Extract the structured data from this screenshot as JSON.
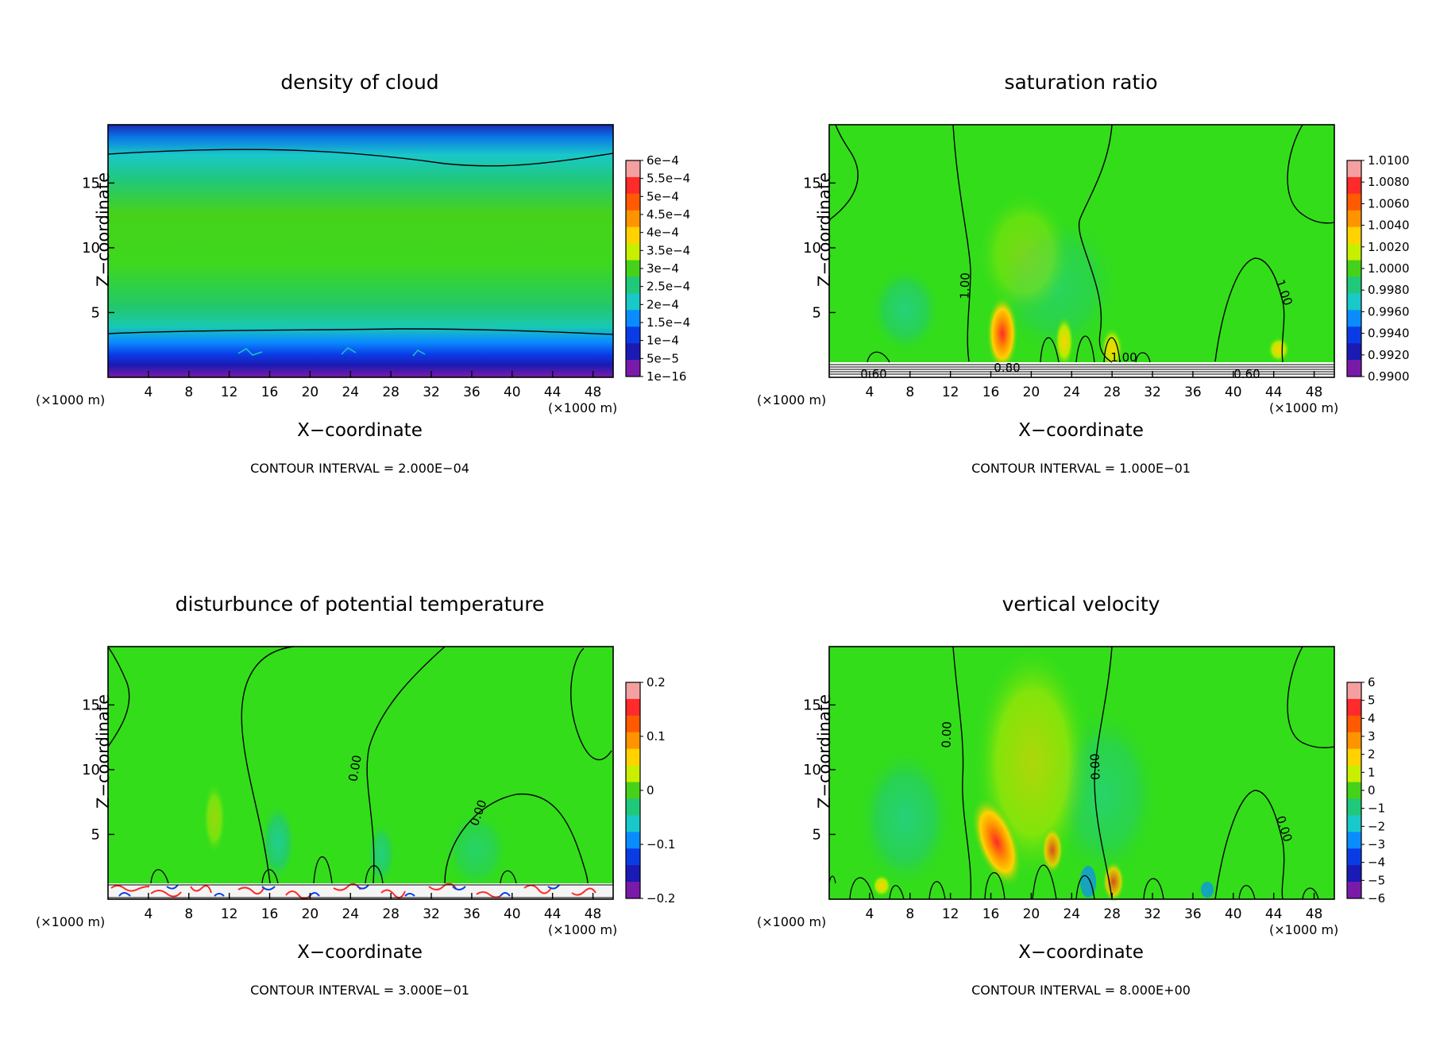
{
  "chart_data": [
    {
      "type": "heatmap",
      "title": "density of cloud",
      "xlabel": "X−coordinate",
      "ylabel": "Z−coordinate",
      "x_unit_left": "(×1000 m)",
      "x_unit_right": "(×1000 m)",
      "x_ticks": [
        "4",
        "8",
        "12",
        "16",
        "20",
        "24",
        "28",
        "32",
        "36",
        "40",
        "44",
        "48"
      ],
      "y_ticks": [
        "5",
        "10",
        "15"
      ],
      "xlim": [
        0,
        50
      ],
      "ylim": [
        0,
        19.5
      ],
      "contour_interval": "CONTOUR INTERVAL = 2.000E−04",
      "colorbar_labels": [
        "6e−4",
        "5.5e−4",
        "5e−4",
        "4.5e−4",
        "4e−4",
        "3.5e−4",
        "3e−4",
        "2.5e−4",
        "2e−4",
        "1.5e−4",
        "1e−4",
        "5e−5",
        "1e−16"
      ],
      "contour_labels": []
    },
    {
      "type": "heatmap",
      "title": "saturation ratio",
      "xlabel": "X−coordinate",
      "ylabel": "Z−coordinate",
      "x_unit_left": "(×1000 m)",
      "x_unit_right": "(×1000 m)",
      "x_ticks": [
        "4",
        "8",
        "12",
        "16",
        "20",
        "24",
        "28",
        "32",
        "36",
        "40",
        "44",
        "48"
      ],
      "y_ticks": [
        "5",
        "10",
        "15"
      ],
      "xlim": [
        0,
        50
      ],
      "ylim": [
        0,
        19.5
      ],
      "contour_interval": "CONTOUR INTERVAL = 1.000E−01",
      "colorbar_labels": [
        "1.0100",
        "1.0080",
        "1.0060",
        "1.0040",
        "1.0020",
        "1.0000",
        "0.9980",
        "0.9960",
        "0.9940",
        "0.9920",
        "0.9900"
      ],
      "contour_labels": [
        "1.00",
        "1.00",
        "1.00",
        "0.60",
        "0.80",
        "0.60"
      ]
    },
    {
      "type": "heatmap",
      "title": "disturbunce of potential temperature",
      "xlabel": "X−coordinate",
      "ylabel": "Z−coordinate",
      "x_unit_left": "(×1000 m)",
      "x_unit_right": "(×1000 m)",
      "x_ticks": [
        "4",
        "8",
        "12",
        "16",
        "20",
        "24",
        "28",
        "32",
        "36",
        "40",
        "44",
        "48"
      ],
      "y_ticks": [
        "5",
        "10",
        "15"
      ],
      "xlim": [
        0,
        50
      ],
      "ylim": [
        0,
        19.5
      ],
      "contour_interval": "CONTOUR INTERVAL = 3.000E−01",
      "colorbar_labels": [
        "0.2",
        "0.1",
        "0",
        "−0.1",
        "−0.2"
      ],
      "contour_labels": [
        "0.00",
        "0.00"
      ]
    },
    {
      "type": "heatmap",
      "title": "vertical velocity",
      "xlabel": "X−coordinate",
      "ylabel": "Z−coordinate",
      "x_unit_left": "(×1000 m)",
      "x_unit_right": "(×1000 m)",
      "x_ticks": [
        "4",
        "8",
        "12",
        "16",
        "20",
        "24",
        "28",
        "32",
        "36",
        "40",
        "44",
        "48"
      ],
      "y_ticks": [
        "5",
        "10",
        "15"
      ],
      "xlim": [
        0,
        50
      ],
      "ylim": [
        0,
        19.5
      ],
      "contour_interval": "CONTOUR INTERVAL = 8.000E+00",
      "colorbar_labels": [
        "6",
        "5",
        "4",
        "3",
        "2",
        "1",
        "0",
        "−1",
        "−2",
        "−3",
        "−4",
        "−5",
        "−6"
      ],
      "contour_labels": [
        "0.00",
        "0.00",
        "0.00"
      ]
    }
  ],
  "colors": {
    "field_green": "#33dd1a",
    "colorbar": [
      "#f5a0a0",
      "#ff2a2a",
      "#ff5a00",
      "#ff9400",
      "#ffd200",
      "#c8ee00",
      "#46d21a",
      "#20c87a",
      "#19c8c8",
      "#0a8cff",
      "#0a3ce6",
      "#1a1ab4",
      "#7a1aa8"
    ]
  }
}
